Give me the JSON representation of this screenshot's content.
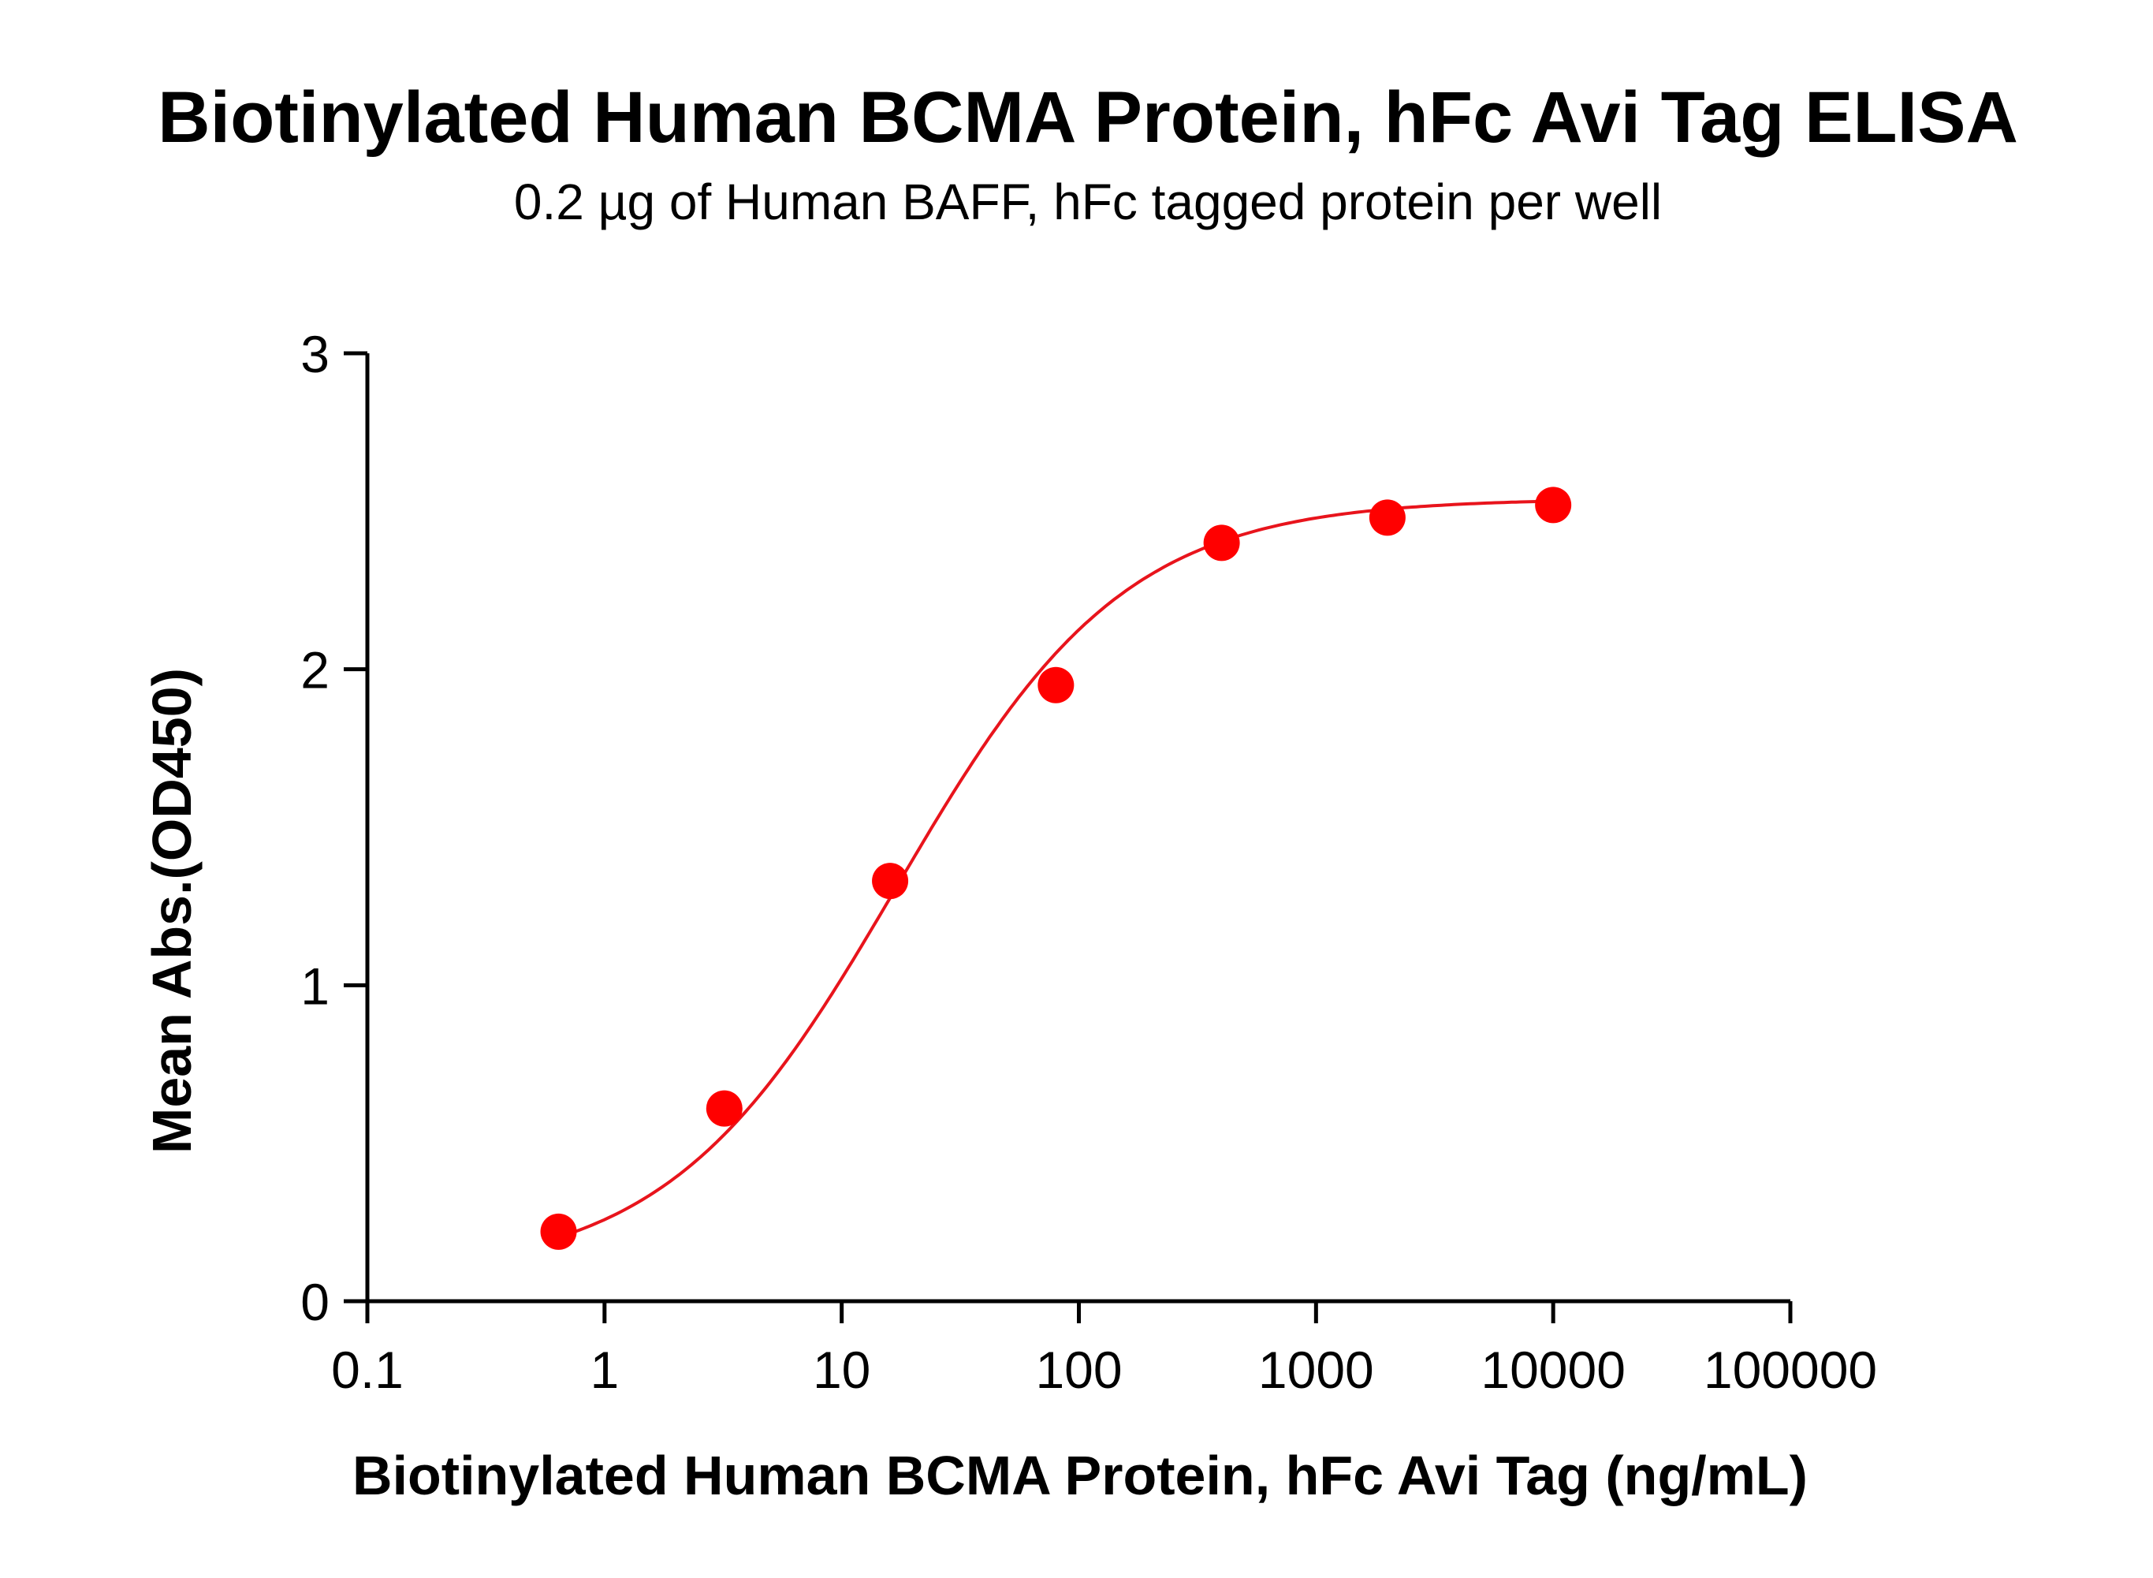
{
  "chart_data": {
    "type": "scatter",
    "title": "Biotinylated Human BCMA Protein, hFc Avi Tag ELISA",
    "subtitle": "0.2 µg of Human BAFF, hFc tagged protein per well",
    "xlabel": "Biotinylated Human BCMA Protein, hFc Avi Tag (ng/mL)",
    "ylabel": "Mean Abs.(OD450)",
    "xscale": "log",
    "xlim": [
      0.1,
      100000
    ],
    "ylim": [
      0,
      3
    ],
    "x_ticks": [
      0.1,
      1,
      10,
      100,
      1000,
      10000,
      100000
    ],
    "x_tick_labels": [
      "0.1",
      "1",
      "10",
      "100",
      "1000",
      "10000",
      "100000"
    ],
    "y_ticks": [
      0,
      1,
      2,
      3
    ],
    "y_tick_labels": [
      "0",
      "1",
      "2",
      "3"
    ],
    "grid": false,
    "colors": {
      "series": "#ff0000",
      "curve": "#e8141c",
      "axis": "#000000"
    },
    "series": [
      {
        "name": "Mean Abs.(OD450)",
        "x": [
          0.64,
          3.2,
          16,
          80,
          400,
          2000,
          10000
        ],
        "y": [
          0.22,
          0.61,
          1.33,
          1.95,
          2.4,
          2.48,
          2.52
        ]
      }
    ],
    "fit": {
      "type": "4PL",
      "bottom": 0.08,
      "top": 2.54,
      "ec50": 17,
      "hill": 0.9
    }
  }
}
